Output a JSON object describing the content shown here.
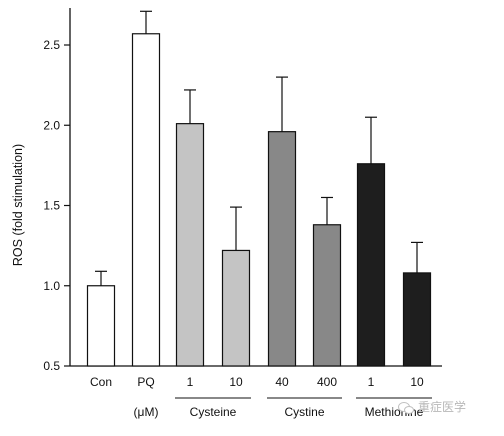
{
  "chart_data": {
    "type": "bar",
    "ylabel": "ROS (fold stimulation)",
    "xlabel": "",
    "ylim": [
      0.5,
      2.7
    ],
    "yticks": [
      "0.5",
      "1.0",
      "1.5",
      "2.0",
      "2.5"
    ],
    "ytick_values": [
      0.5,
      1.0,
      1.5,
      2.0,
      2.5
    ],
    "categories": [
      "Con",
      "PQ",
      "1",
      "10",
      "40",
      "400",
      "1",
      "10"
    ],
    "values": [
      1.0,
      2.57,
      2.01,
      1.22,
      1.96,
      1.38,
      1.76,
      1.08
    ],
    "errors": [
      0.09,
      0.14,
      0.21,
      0.27,
      0.34,
      0.17,
      0.29,
      0.19
    ],
    "colors": [
      "#ffffff",
      "#ffffff",
      "#c4c4c4",
      "#c4c4c4",
      "#888888",
      "#888888",
      "#1e1e1e",
      "#1e1e1e"
    ],
    "groups": [
      {
        "label": "(μM)",
        "start": 1,
        "end": 1,
        "underline": false
      },
      {
        "label": "Cysteine",
        "start": 2,
        "end": 3,
        "underline": true
      },
      {
        "label": "Cystine",
        "start": 4,
        "end": 5,
        "underline": true
      },
      {
        "label": "Methionine",
        "start": 6,
        "end": 7,
        "underline": true
      }
    ],
    "grid": false,
    "legend": "none"
  },
  "watermark": {
    "text": "重症医学"
  }
}
